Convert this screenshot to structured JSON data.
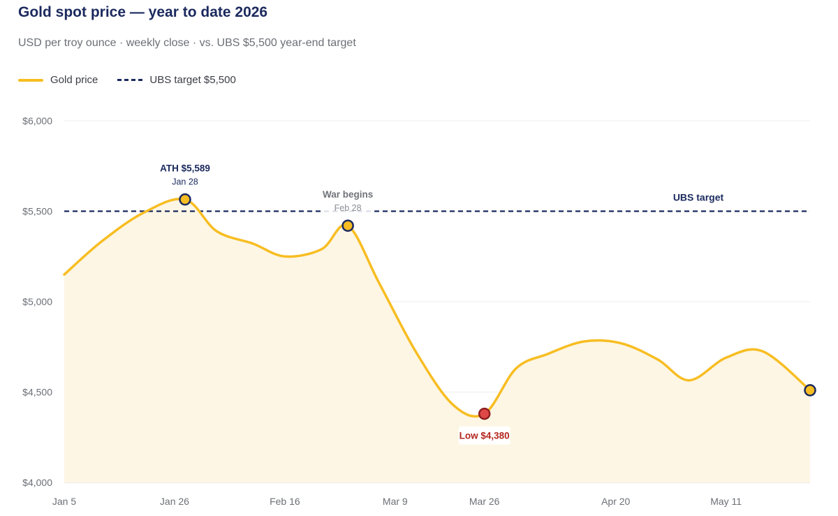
{
  "chart_data": {
    "type": "line",
    "title": "Gold spot price — year to date 2026",
    "subtitle": "USD per troy ounce · weekly close · vs. UBS $5,500 year-end target",
    "ylim": [
      4000,
      6000
    ],
    "yticks": [
      "$4,000",
      "$4,500",
      "$5,000",
      "$5,500",
      "$6,000"
    ],
    "ytick_values": [
      4000,
      4500,
      5000,
      5500,
      6000
    ],
    "x_range": [
      "2026-01-05",
      "2026-05-27"
    ],
    "xticks": [
      {
        "label": "Jan 5",
        "date": "2026-01-05"
      },
      {
        "label": "Jan 26",
        "date": "2026-01-26"
      },
      {
        "label": "Feb 16",
        "date": "2026-02-16"
      },
      {
        "label": "Mar 9",
        "date": "2026-03-09"
      },
      {
        "label": "Mar 26",
        "date": "2026-03-26"
      },
      {
        "label": "Apr 20",
        "date": "2026-04-20"
      },
      {
        "label": "May 11",
        "date": "2026-05-11"
      }
    ],
    "legend": [
      {
        "label": "Gold price",
        "color": "#f7bd22",
        "style": "solid"
      },
      {
        "label": "UBS target $5,500",
        "color": "#1b2a5e",
        "style": "dashed"
      }
    ],
    "legend_position": "top-left",
    "grid": true,
    "series": [
      {
        "name": "Gold price",
        "color": "#f7bd22",
        "points": [
          {
            "date": "2026-01-05",
            "value": 5150
          },
          {
            "date": "2026-01-12",
            "value": 5330
          },
          {
            "date": "2026-01-20",
            "value": 5490
          },
          {
            "date": "2026-01-28",
            "value": 5565
          },
          {
            "date": "2026-02-03",
            "value": 5390
          },
          {
            "date": "2026-02-10",
            "value": 5320
          },
          {
            "date": "2026-02-16",
            "value": 5250
          },
          {
            "date": "2026-02-23",
            "value": 5290
          },
          {
            "date": "2026-02-28",
            "value": 5420
          },
          {
            "date": "2026-03-06",
            "value": 5100
          },
          {
            "date": "2026-03-13",
            "value": 4720
          },
          {
            "date": "2026-03-20",
            "value": 4430
          },
          {
            "date": "2026-03-26",
            "value": 4380
          },
          {
            "date": "2026-04-01",
            "value": 4630
          },
          {
            "date": "2026-04-07",
            "value": 4710
          },
          {
            "date": "2026-04-14",
            "value": 4780
          },
          {
            "date": "2026-04-21",
            "value": 4770
          },
          {
            "date": "2026-04-28",
            "value": 4680
          },
          {
            "date": "2026-05-04",
            "value": 4565
          },
          {
            "date": "2026-05-11",
            "value": 4690
          },
          {
            "date": "2026-05-18",
            "value": 4725
          },
          {
            "date": "2026-05-27",
            "value": 4510
          }
        ]
      }
    ],
    "reference_line": {
      "name": "UBS target",
      "value": 5500,
      "label": "UBS target",
      "color": "#1b2a5e"
    },
    "annotations": [
      {
        "date": "2026-01-28",
        "value": 5565,
        "title": "ATH $5,589",
        "sub": "Jan 28",
        "marker": "#f7bd22",
        "text_color": "#1b2a5e",
        "placement": "above"
      },
      {
        "date": "2026-02-28",
        "value": 5420,
        "title": "War begins",
        "sub": "Feb 28",
        "marker": "#f7bd22",
        "text_color": "#707379",
        "placement": "above"
      },
      {
        "date": "2026-03-26",
        "value": 4380,
        "title": "Low $4,380",
        "sub": "",
        "marker": "#e04848",
        "text_color": "#b3261e",
        "placement": "below"
      },
      {
        "date": "2026-05-27",
        "value": 4510,
        "title": "",
        "sub": "",
        "marker": "#f7bd22",
        "text_color": "#1b2a5e",
        "placement": "none"
      }
    ]
  }
}
